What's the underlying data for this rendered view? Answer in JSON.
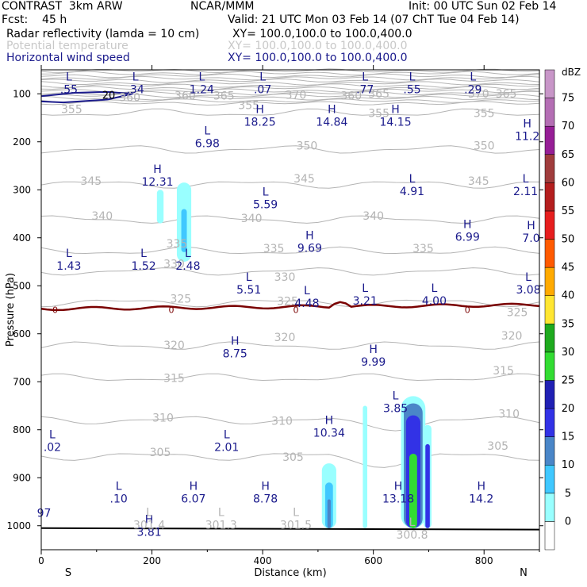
{
  "header": {
    "title": "CONTRAST  3km ARW",
    "center": "NCAR/MMM",
    "init": "Init: 00 UTC Sun 02 Feb 14",
    "fcst": "Fcst:    45 h",
    "valid": "Valid: 21 UTC Mon 03 Feb 14 (07 ChT Tue 04 Feb 14)",
    "field1": "Radar reflectivity (lamda = 10 cm)",
    "field1_xy": "XY= 100.0,100.0 to 100.0,400.0",
    "field2": "Potential temperature",
    "field2_xy": "XY= 100.0,100.0 to 100.0,400.0",
    "field3": "Horizontal wind speed",
    "field3_xy": "XY= 100.0,100.0 to 100.0,400.0"
  },
  "colors": {
    "theta": "#b4b4b4",
    "wind": "#1a1a8c",
    "zero_line": "#7a0000",
    "dbz": [
      "#ffffff",
      "#99ffff",
      "#40c8ff",
      "#4a86c8",
      "#3232e6",
      "#2020b4",
      "#32dc32",
      "#1eaa1e",
      "#ffe632",
      "#ffaa00",
      "#ff5a00",
      "#e61e1e",
      "#b41e1e",
      "#a03c3c",
      "#961e96",
      "#b46eb4",
      "#c896c8"
    ]
  },
  "chart_data": {
    "type": "cross-section",
    "xlabel": "Distance (km)",
    "ylabel": "Pressure (hPa)",
    "xlim": [
      0,
      900
    ],
    "ylim": [
      1050,
      50
    ],
    "x_ticks": [
      "0",
      "200",
      "400",
      "600",
      "800"
    ],
    "y_ticks": [
      "100",
      "200",
      "300",
      "400",
      "500",
      "600",
      "700",
      "800",
      "900",
      "1000"
    ],
    "x_end_labels": {
      "left": "S",
      "right": "N"
    },
    "colorbar": {
      "unit": "dBZ",
      "labels": [
        "75",
        "70",
        "65",
        "60",
        "55",
        "50",
        "45",
        "40",
        "35",
        "30",
        "25",
        "20",
        "15",
        "10",
        "5",
        "0"
      ]
    },
    "theta_labels": [
      {
        "x": 260,
        "p": 112,
        "t": "360"
      },
      {
        "x": 330,
        "p": 112,
        "t": "365"
      },
      {
        "x": 460,
        "p": 110,
        "t": "370"
      },
      {
        "x": 560,
        "p": 112,
        "t": "360"
      },
      {
        "x": 610,
        "p": 108,
        "t": "365"
      },
      {
        "x": 790,
        "p": 108,
        "t": "370"
      },
      {
        "x": 840,
        "p": 108,
        "t": "365"
      },
      {
        "x": 160,
        "p": 115,
        "t": "360"
      },
      {
        "x": 55,
        "p": 140,
        "t": "355"
      },
      {
        "x": 375,
        "p": 132,
        "t": "355"
      },
      {
        "x": 610,
        "p": 148,
        "t": "355"
      },
      {
        "x": 800,
        "p": 148,
        "t": "355"
      },
      {
        "x": 480,
        "p": 216,
        "t": "350"
      },
      {
        "x": 800,
        "p": 216,
        "t": "350"
      },
      {
        "x": 90,
        "p": 290,
        "t": "345"
      },
      {
        "x": 475,
        "p": 285,
        "t": "345"
      },
      {
        "x": 790,
        "p": 290,
        "t": "345"
      },
      {
        "x": 110,
        "p": 362,
        "t": "340"
      },
      {
        "x": 380,
        "p": 367,
        "t": "340"
      },
      {
        "x": 600,
        "p": 362,
        "t": "340"
      },
      {
        "x": 245,
        "p": 420,
        "t": "335"
      },
      {
        "x": 420,
        "p": 430,
        "t": "335"
      },
      {
        "x": 690,
        "p": 430,
        "t": "335"
      },
      {
        "x": 240,
        "p": 462,
        "t": "330"
      },
      {
        "x": 440,
        "p": 490,
        "t": "330"
      },
      {
        "x": 252,
        "p": 535,
        "t": "325"
      },
      {
        "x": 445,
        "p": 540,
        "t": "325"
      },
      {
        "x": 860,
        "p": 563,
        "t": "325"
      },
      {
        "x": 240,
        "p": 632,
        "t": "320"
      },
      {
        "x": 440,
        "p": 615,
        "t": "320"
      },
      {
        "x": 850,
        "p": 612,
        "t": "320"
      },
      {
        "x": 240,
        "p": 700,
        "t": "315"
      },
      {
        "x": 835,
        "p": 685,
        "t": "315"
      },
      {
        "x": 220,
        "p": 783,
        "t": "310"
      },
      {
        "x": 435,
        "p": 790,
        "t": "310"
      },
      {
        "x": 845,
        "p": 775,
        "t": "310"
      },
      {
        "x": 215,
        "p": 855,
        "t": "305"
      },
      {
        "x": 455,
        "p": 865,
        "t": "305"
      },
      {
        "x": 825,
        "p": 842,
        "t": "305"
      }
    ],
    "zero_contour_label": "0",
    "wind_contour_label": "20",
    "extrema": [
      {
        "x": 50,
        "p": 72,
        "l": "L",
        "v": ".55"
      },
      {
        "x": 170,
        "p": 72,
        "l": "L",
        "v": ".34"
      },
      {
        "x": 290,
        "p": 72,
        "l": "L",
        "v": "1.24"
      },
      {
        "x": 400,
        "p": 72,
        "l": "L",
        "v": ".07"
      },
      {
        "x": 585,
        "p": 72,
        "l": "L",
        "v": ".77"
      },
      {
        "x": 670,
        "p": 72,
        "l": "L",
        "v": ".55"
      },
      {
        "x": 780,
        "p": 72,
        "l": "L",
        "v": ".29"
      },
      {
        "x": 395,
        "p": 140,
        "l": "H",
        "v": "18.25"
      },
      {
        "x": 525,
        "p": 140,
        "l": "H",
        "v": "14.84"
      },
      {
        "x": 640,
        "p": 140,
        "l": "H",
        "v": "14.15"
      },
      {
        "x": 878,
        "p": 170,
        "l": "H",
        "v": "11.2"
      },
      {
        "x": 300,
        "p": 185,
        "l": "L",
        "v": "6.98"
      },
      {
        "x": 210,
        "p": 265,
        "l": "H",
        "v": "12.31"
      },
      {
        "x": 670,
        "p": 285,
        "l": "L",
        "v": "4.91"
      },
      {
        "x": 875,
        "p": 285,
        "l": "L",
        "v": "2.11"
      },
      {
        "x": 405,
        "p": 312,
        "l": "L",
        "v": "5.59"
      },
      {
        "x": 770,
        "p": 380,
        "l": "H",
        "v": "6.99"
      },
      {
        "x": 885,
        "p": 382,
        "l": "H",
        "v": "7.0"
      },
      {
        "x": 485,
        "p": 403,
        "l": "H",
        "v": "9.69"
      },
      {
        "x": 50,
        "p": 440,
        "l": "L",
        "v": "1.43"
      },
      {
        "x": 185,
        "p": 440,
        "l": "L",
        "v": "1.52"
      },
      {
        "x": 265,
        "p": 440,
        "l": "L",
        "v": "2.48"
      },
      {
        "x": 375,
        "p": 490,
        "l": "L",
        "v": "5.51"
      },
      {
        "x": 880,
        "p": 490,
        "l": "L",
        "v": "3.08"
      },
      {
        "x": 480,
        "p": 518,
        "l": "L",
        "v": "4.48"
      },
      {
        "x": 585,
        "p": 513,
        "l": "L",
        "v": "3.21"
      },
      {
        "x": 710,
        "p": 513,
        "l": "L",
        "v": "4.00"
      },
      {
        "x": 350,
        "p": 623,
        "l": "H",
        "v": "8.75"
      },
      {
        "x": 600,
        "p": 640,
        "l": "H",
        "v": "9.99"
      },
      {
        "x": 640,
        "p": 737,
        "l": "L",
        "v": "3.85"
      },
      {
        "x": 520,
        "p": 788,
        "l": "H",
        "v": "10.34"
      },
      {
        "x": 20,
        "p": 818,
        "l": "L",
        "v": ".02"
      },
      {
        "x": 335,
        "p": 818,
        "l": "L",
        "v": "2.01"
      },
      {
        "x": 140,
        "p": 925,
        "l": "L",
        "v": ".10"
      },
      {
        "x": 275,
        "p": 925,
        "l": "H",
        "v": "6.07"
      },
      {
        "x": 405,
        "p": 925,
        "l": "H",
        "v": "8.78"
      },
      {
        "x": 645,
        "p": 925,
        "l": "H",
        "v": "13.18"
      },
      {
        "x": 795,
        "p": 925,
        "l": "H",
        "v": "14.2"
      },
      {
        "x": 5,
        "p": 955,
        "l": "",
        "v": "97"
      },
      {
        "x": 195,
        "p": 995,
        "l": "H",
        "v": "3.81"
      }
    ],
    "surface_theta_labels": [
      {
        "x": 195,
        "p": 980,
        "l": "L",
        "v": "301.4"
      },
      {
        "x": 325,
        "p": 980,
        "l": "L",
        "v": "301.3"
      },
      {
        "x": 460,
        "p": 980,
        "l": "L",
        "v": "301.5"
      },
      {
        "x": 670,
        "p": 1000,
        "l": "L",
        "v": "300.8"
      }
    ],
    "echoes": [
      {
        "x": 215,
        "p0": 300,
        "p1": 370,
        "w": 12,
        "level": 1
      },
      {
        "x": 258,
        "p0": 285,
        "p1": 450,
        "w": 26,
        "level": 1
      },
      {
        "x": 258,
        "p0": 340,
        "p1": 430,
        "w": 10,
        "level": 2
      },
      {
        "x": 520,
        "p0": 870,
        "p1": 1005,
        "w": 26,
        "level": 1
      },
      {
        "x": 520,
        "p0": 910,
        "p1": 1005,
        "w": 14,
        "level": 2
      },
      {
        "x": 520,
        "p0": 945,
        "p1": 1005,
        "w": 6,
        "level": 3
      },
      {
        "x": 585,
        "p0": 750,
        "p1": 1005,
        "w": 8,
        "level": 1
      },
      {
        "x": 672,
        "p0": 730,
        "p1": 1005,
        "w": 44,
        "level": 1
      },
      {
        "x": 672,
        "p0": 745,
        "p1": 1005,
        "w": 34,
        "level": 3
      },
      {
        "x": 672,
        "p0": 770,
        "p1": 1005,
        "w": 26,
        "level": 4
      },
      {
        "x": 672,
        "p0": 850,
        "p1": 1005,
        "w": 14,
        "level": 6
      },
      {
        "x": 698,
        "p0": 790,
        "p1": 1005,
        "w": 14,
        "level": 1
      },
      {
        "x": 698,
        "p0": 830,
        "p1": 1005,
        "w": 8,
        "level": 4
      }
    ]
  }
}
